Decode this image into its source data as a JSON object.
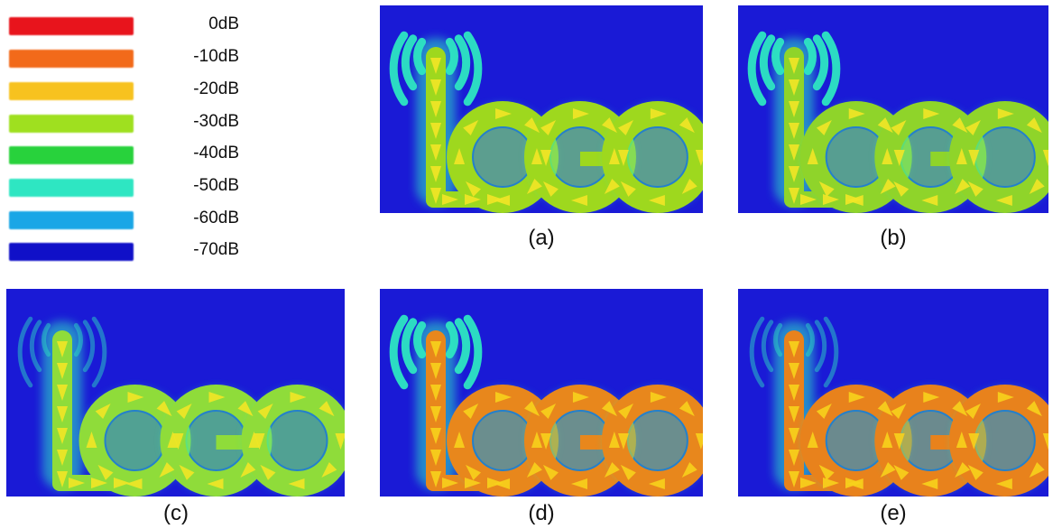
{
  "legend": {
    "items": [
      {
        "label": "0dB",
        "color": "#e8141c"
      },
      {
        "label": "-10dB",
        "color": "#f26a1a"
      },
      {
        "label": "-20dB",
        "color": "#f7c21f"
      },
      {
        "label": "-30dB",
        "color": "#9fe01f"
      },
      {
        "label": "-40dB",
        "color": "#28d23c"
      },
      {
        "label": "-50dB",
        "color": "#2ee6c2"
      },
      {
        "label": "-60dB",
        "color": "#1aa6e6"
      },
      {
        "label": "-70dB",
        "color": "#1010c8"
      }
    ]
  },
  "panels": [
    {
      "id": "a",
      "caption": "(a)",
      "logo_text": "LOGO",
      "waves": "strong",
      "logo_color": "#9ed81e",
      "arrow_color": "#f2e626",
      "accent": "#c6d820"
    },
    {
      "id": "b",
      "caption": "(b)",
      "logo_text": "LOGO",
      "waves": "strong",
      "logo_color": "#8fd42a",
      "arrow_color": "#f2e626",
      "accent": "#b8d625"
    },
    {
      "id": "c",
      "caption": "(c)",
      "logo_text": "LOGO",
      "waves": "weak",
      "logo_color": "#8fdc3a",
      "arrow_color": "#f2e626",
      "accent": "#a7e02a"
    },
    {
      "id": "d",
      "caption": "(d)",
      "logo_text": "LOGO",
      "waves": "strong",
      "logo_color": "#e8871c",
      "arrow_color": "#f7d21c",
      "accent": "#f2a81c"
    },
    {
      "id": "e",
      "caption": "(e)",
      "logo_text": "LOGO",
      "waves": "weak",
      "logo_color": "#e8821c",
      "arrow_color": "#f7d21c",
      "accent": "#f29e1c"
    }
  ],
  "background_color": "#1a1ad6"
}
